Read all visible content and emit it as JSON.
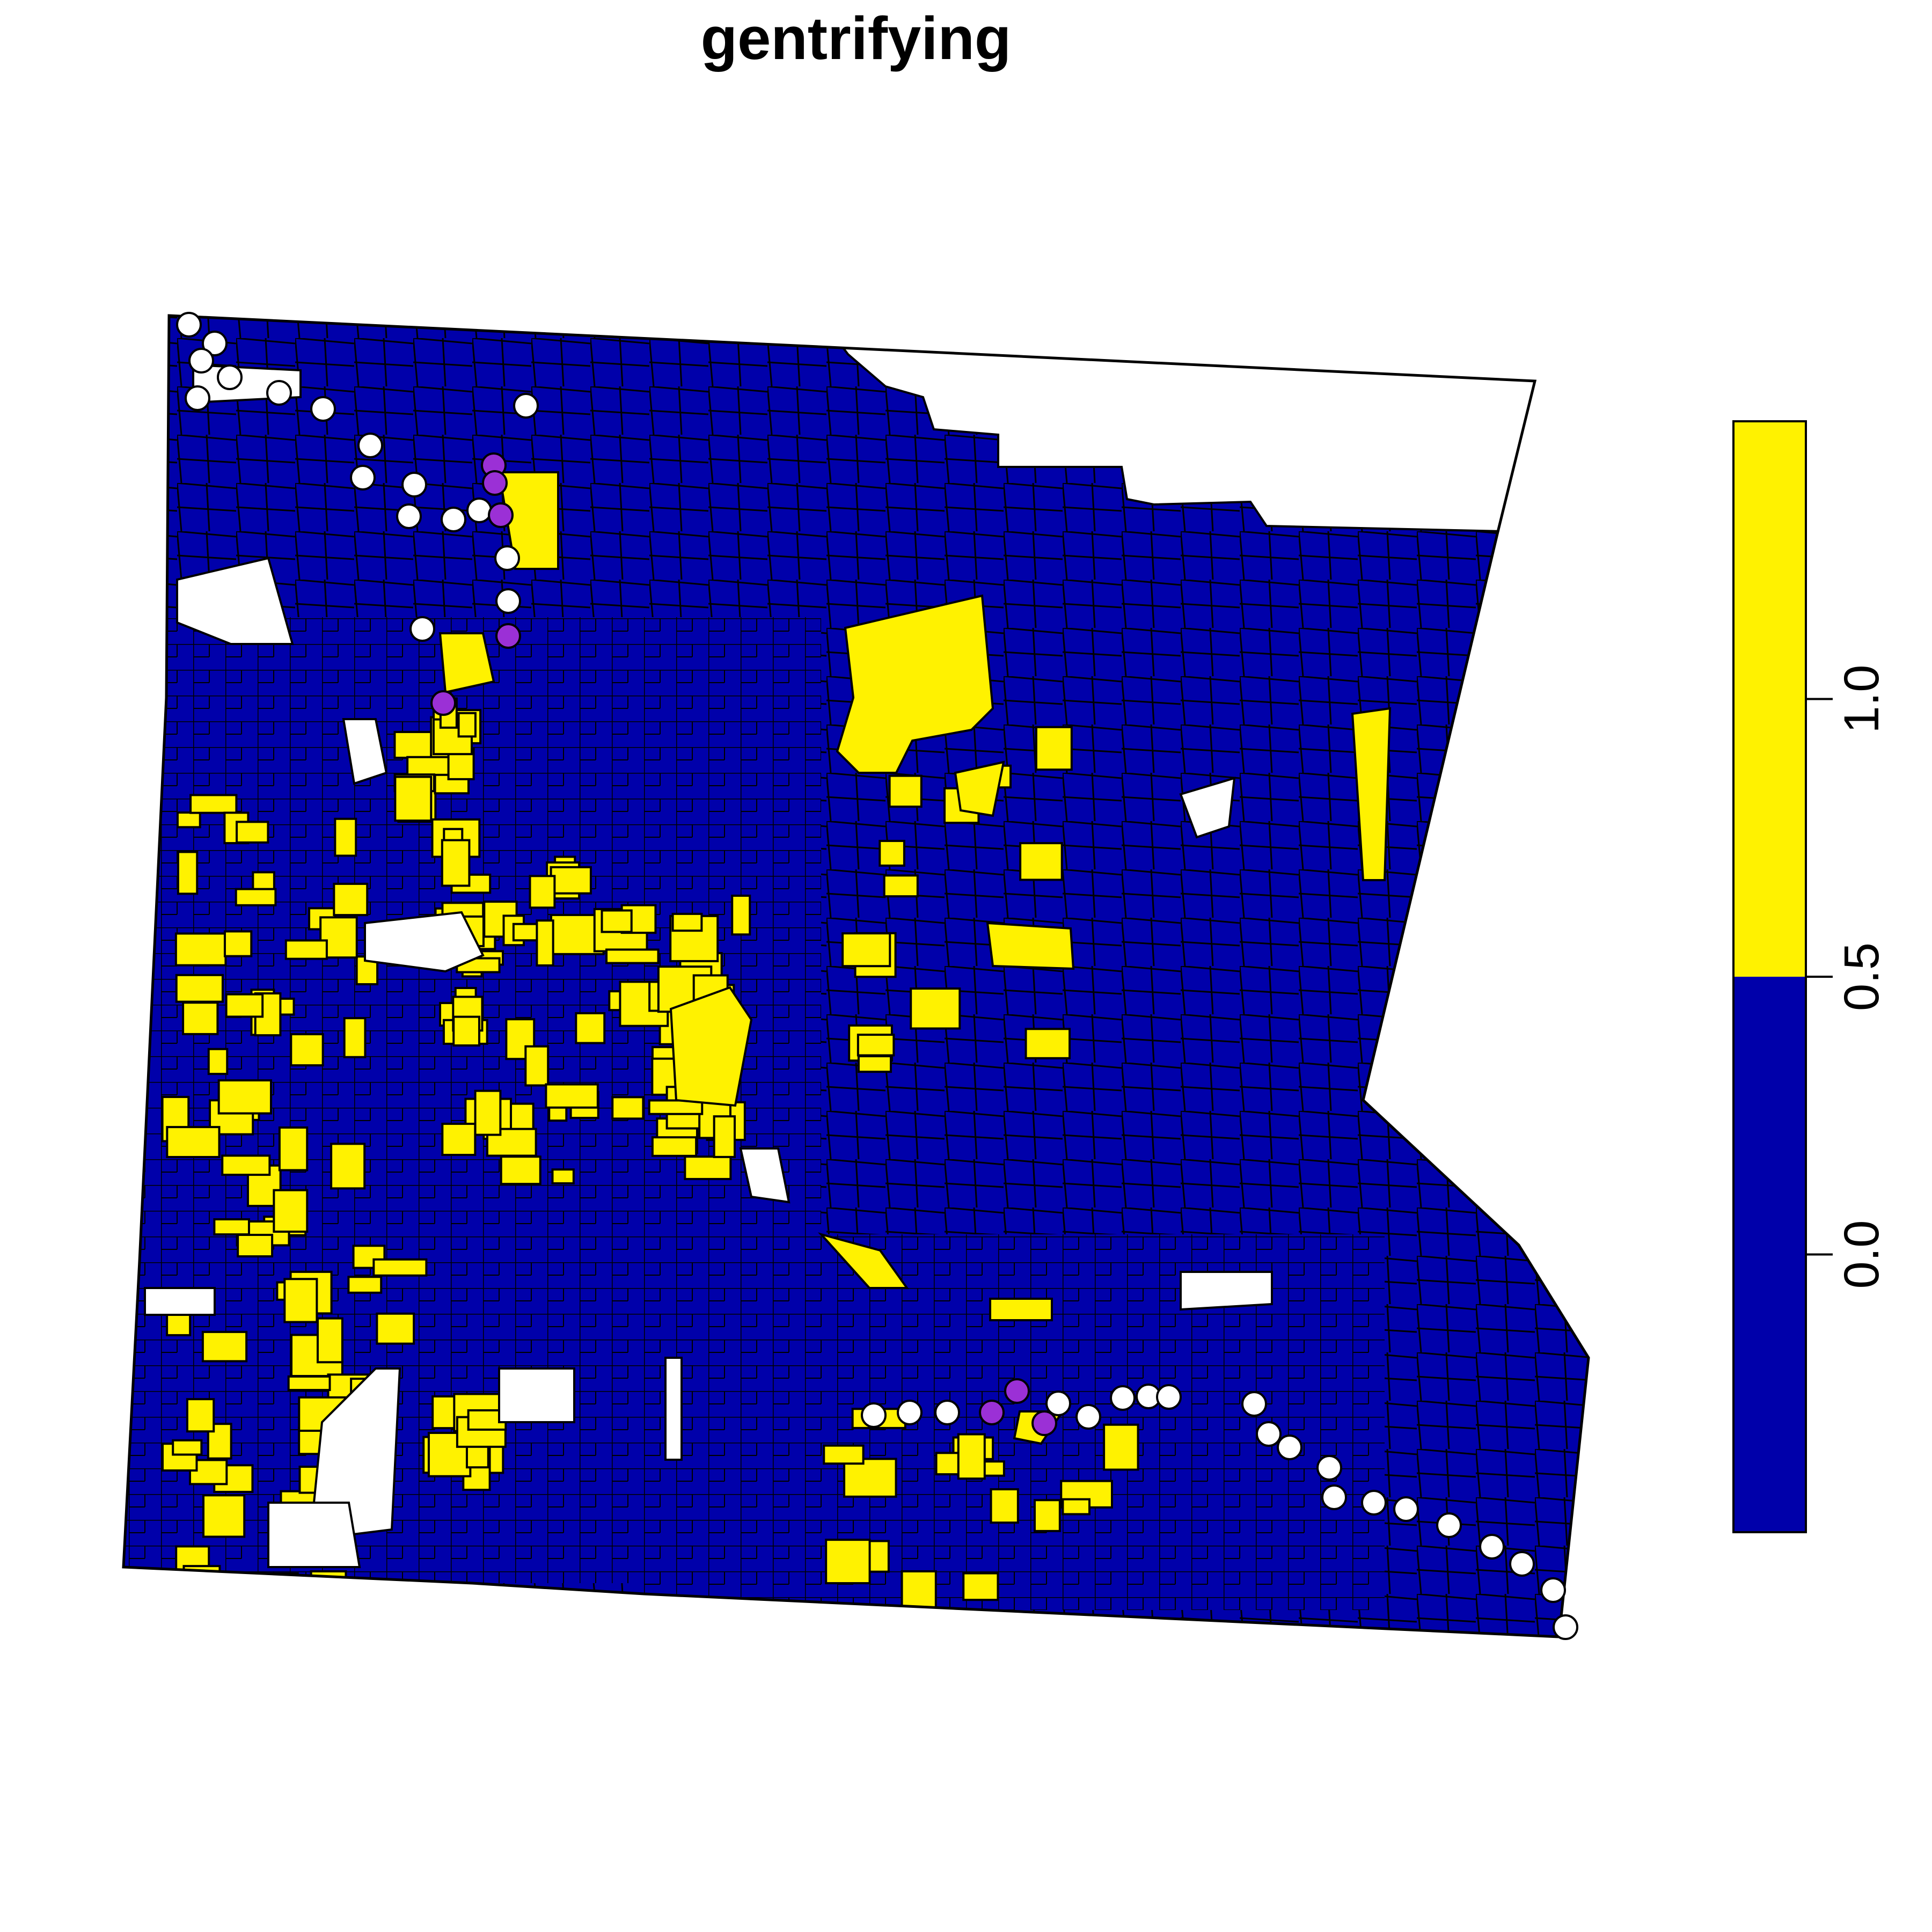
{
  "title": "gentrifying",
  "colors": {
    "low": "#0000AA",
    "high": "#FFF200",
    "missing": "#FFFFFF",
    "station_gentrifying": "#9B30D6",
    "station_other": "#FFFFFF",
    "outline": "#000000"
  },
  "legend": {
    "range": [
      -0.5,
      1.5
    ],
    "breaks": [
      {
        "from": -0.5,
        "to": 0.5,
        "color": "#0000AA"
      },
      {
        "from": 0.5,
        "to": 1.5,
        "color": "#FFF200"
      }
    ],
    "ticks": [
      "0.0",
      "0.5",
      "1.0"
    ],
    "tick_values": [
      0.0,
      0.5,
      1.0
    ]
  }
}
